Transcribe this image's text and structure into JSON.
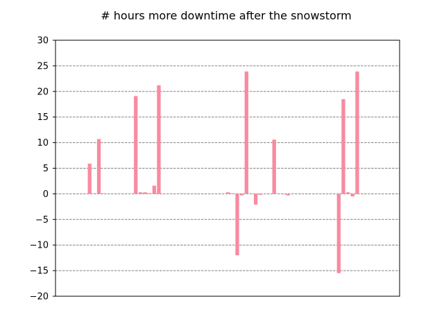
{
  "chart_data": {
    "type": "bar",
    "title": "# hours more downtime after the snowstorm",
    "xlabel": "",
    "ylabel": "",
    "ylim": [
      -20,
      30
    ],
    "yticks": [
      -20,
      -15,
      -10,
      -5,
      0,
      5,
      10,
      15,
      20,
      25,
      30
    ],
    "grid": "horizontal dashed",
    "bar_color": "#f98aa0",
    "grid_color": "#808080",
    "values": [
      0,
      0,
      0,
      0,
      5.9,
      0,
      10.7,
      0.1,
      0,
      0,
      0,
      0,
      0,
      0,
      19.1,
      0.3,
      0.3,
      0.1,
      1.6,
      21.2,
      0,
      0,
      0,
      0,
      0.1,
      0.05,
      0,
      0,
      0,
      0,
      0,
      0,
      0,
      0,
      0.3,
      0.1,
      -12.0,
      -0.3,
      23.9,
      0,
      -2.1,
      -0.2,
      0,
      0,
      10.6,
      0,
      -0.1,
      -0.3,
      0,
      0,
      0,
      0,
      0,
      0,
      0,
      0,
      0,
      0,
      -15.5,
      18.5,
      0.3,
      -0.5,
      23.9,
      0,
      0,
      0,
      0,
      0
    ]
  }
}
